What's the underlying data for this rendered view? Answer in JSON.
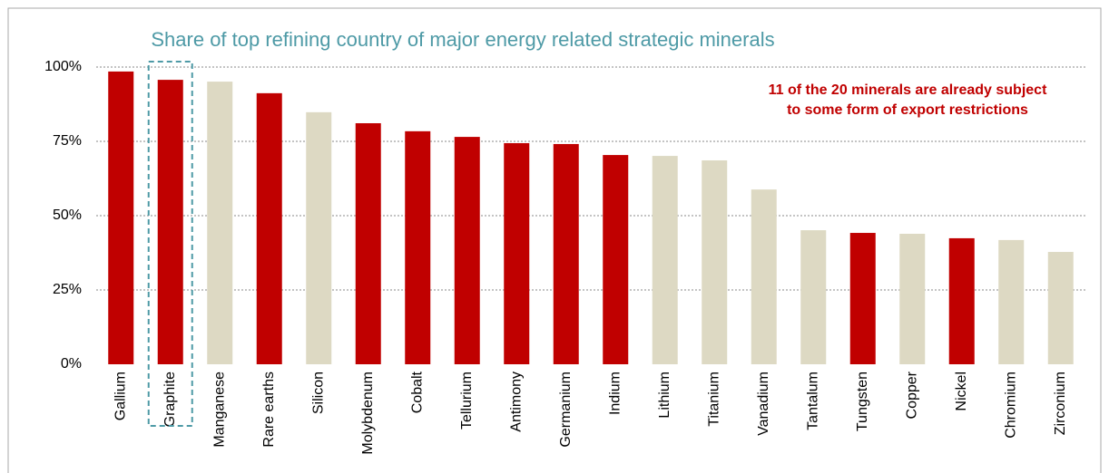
{
  "chart_data": {
    "type": "bar",
    "title": "Share of top refining country of major energy related strategic minerals",
    "annotation": [
      "11 of the 20 minerals are already subject",
      "to some form of export restrictions"
    ],
    "categories": [
      "Gallium",
      "Graphite",
      "Manganese",
      "Rare earths",
      "Silicon",
      "Molybdenum",
      "Cobalt",
      "Tellurium",
      "Antimony",
      "Germanium",
      "Indium",
      "Lithium",
      "Titanium",
      "Vanadium",
      "Tantalum",
      "Tungsten",
      "Copper",
      "Nickel",
      "Chromium",
      "Zirconium"
    ],
    "values": [
      98.5,
      95.7,
      95.1,
      91.2,
      84.8,
      81.1,
      78.4,
      76.5,
      74.4,
      74.1,
      70.4,
      70.1,
      68.6,
      58.8,
      45.1,
      44.2,
      43.9,
      42.4,
      41.8,
      37.8
    ],
    "colors": [
      "#c00000",
      "#c00000",
      "#ddd9c3",
      "#c00000",
      "#ddd9c3",
      "#c00000",
      "#c00000",
      "#c00000",
      "#c00000",
      "#c00000",
      "#c00000",
      "#ddd9c3",
      "#ddd9c3",
      "#ddd9c3",
      "#ddd9c3",
      "#c00000",
      "#ddd9c3",
      "#c00000",
      "#ddd9c3",
      "#ddd9c3"
    ],
    "ylim": [
      0,
      100
    ],
    "yticks": [
      {
        "value": 0,
        "label": "0%"
      },
      {
        "value": 25,
        "label": "25%"
      },
      {
        "value": 50,
        "label": "50%"
      },
      {
        "value": 75,
        "label": "75%"
      },
      {
        "value": 100,
        "label": "100%"
      }
    ],
    "grid": true
  }
}
